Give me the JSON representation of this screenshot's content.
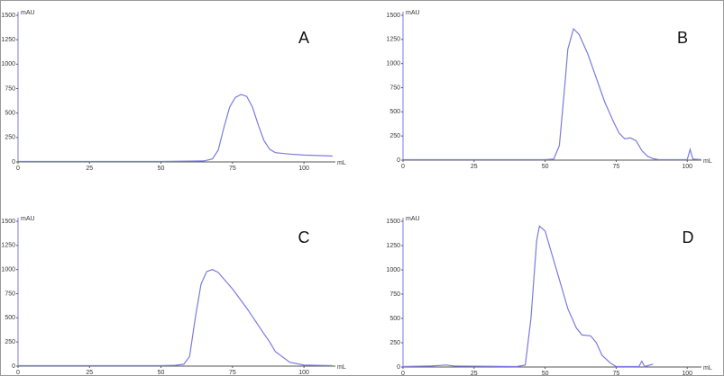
{
  "chart_data": [
    {
      "type": "line",
      "annotation": "A",
      "ylabel": "mAU",
      "xlabel": "mL",
      "color": "#7b7be0",
      "xlim": [
        0,
        111
      ],
      "ylim": [
        0,
        1500
      ],
      "xticks": [
        0,
        25,
        50,
        75,
        100
      ],
      "yticks": [
        0,
        250,
        500,
        750,
        1000,
        1250,
        1500
      ],
      "x": [
        0,
        10,
        20,
        30,
        40,
        50,
        60,
        65,
        68,
        70,
        72,
        74,
        76,
        78,
        80,
        82,
        84,
        86,
        88,
        90,
        95,
        100,
        105,
        110
      ],
      "values": [
        5,
        5,
        5,
        5,
        5,
        5,
        8,
        10,
        30,
        120,
        350,
        560,
        660,
        690,
        670,
        560,
        380,
        220,
        130,
        95,
        80,
        70,
        65,
        60
      ]
    },
    {
      "type": "line",
      "annotation": "B",
      "ylabel": "mAU",
      "xlabel": "mL",
      "color": "#7b7be0",
      "xlim": [
        0,
        105
      ],
      "ylim": [
        0,
        1500
      ],
      "xticks": [
        0,
        25,
        50,
        75,
        100
      ],
      "yticks": [
        0,
        250,
        500,
        750,
        1000,
        1250,
        1500
      ],
      "x": [
        0,
        10,
        20,
        30,
        40,
        50,
        53,
        55,
        57,
        58,
        60,
        62,
        65,
        68,
        71,
        74,
        76,
        78,
        80,
        82,
        84,
        86,
        88,
        90,
        100,
        101,
        102,
        105
      ],
      "values": [
        5,
        5,
        5,
        5,
        5,
        5,
        10,
        150,
        800,
        1150,
        1360,
        1300,
        1100,
        850,
        600,
        400,
        280,
        220,
        230,
        200,
        100,
        40,
        15,
        5,
        5,
        110,
        10,
        5
      ]
    },
    {
      "type": "line",
      "annotation": "C",
      "ylabel": "mAU",
      "xlabel": "mL",
      "color": "#7b7be0",
      "xlim": [
        0,
        111
      ],
      "ylim": [
        0,
        1500
      ],
      "xticks": [
        0,
        25,
        50,
        75,
        100
      ],
      "yticks": [
        0,
        250,
        500,
        750,
        1000,
        1250,
        1500
      ],
      "x": [
        0,
        10,
        20,
        30,
        40,
        50,
        55,
        58,
        60,
        62,
        64,
        66,
        68,
        70,
        75,
        80,
        85,
        88,
        90,
        95,
        100,
        110
      ],
      "values": [
        5,
        5,
        5,
        5,
        5,
        5,
        8,
        20,
        100,
        500,
        850,
        980,
        1000,
        970,
        800,
        600,
        380,
        250,
        150,
        40,
        10,
        5
      ]
    },
    {
      "type": "line",
      "annotation": "D",
      "ylabel": "mAU",
      "xlabel": "mL",
      "color": "#7b7be0",
      "xlim": [
        0,
        105
      ],
      "ylim": [
        0,
        1500
      ],
      "xticks": [
        0,
        25,
        50,
        75,
        100
      ],
      "yticks": [
        0,
        250,
        500,
        750,
        1000,
        1250,
        1500
      ],
      "x": [
        0,
        10,
        15,
        18,
        40,
        43,
        45,
        47,
        48,
        50,
        52,
        55,
        58,
        61,
        63,
        66,
        68,
        70,
        73,
        75,
        83,
        84,
        85,
        88
      ],
      "values": [
        5,
        10,
        20,
        10,
        5,
        20,
        500,
        1300,
        1450,
        1400,
        1200,
        900,
        600,
        400,
        330,
        320,
        250,
        120,
        40,
        5,
        5,
        60,
        5,
        30
      ]
    }
  ]
}
